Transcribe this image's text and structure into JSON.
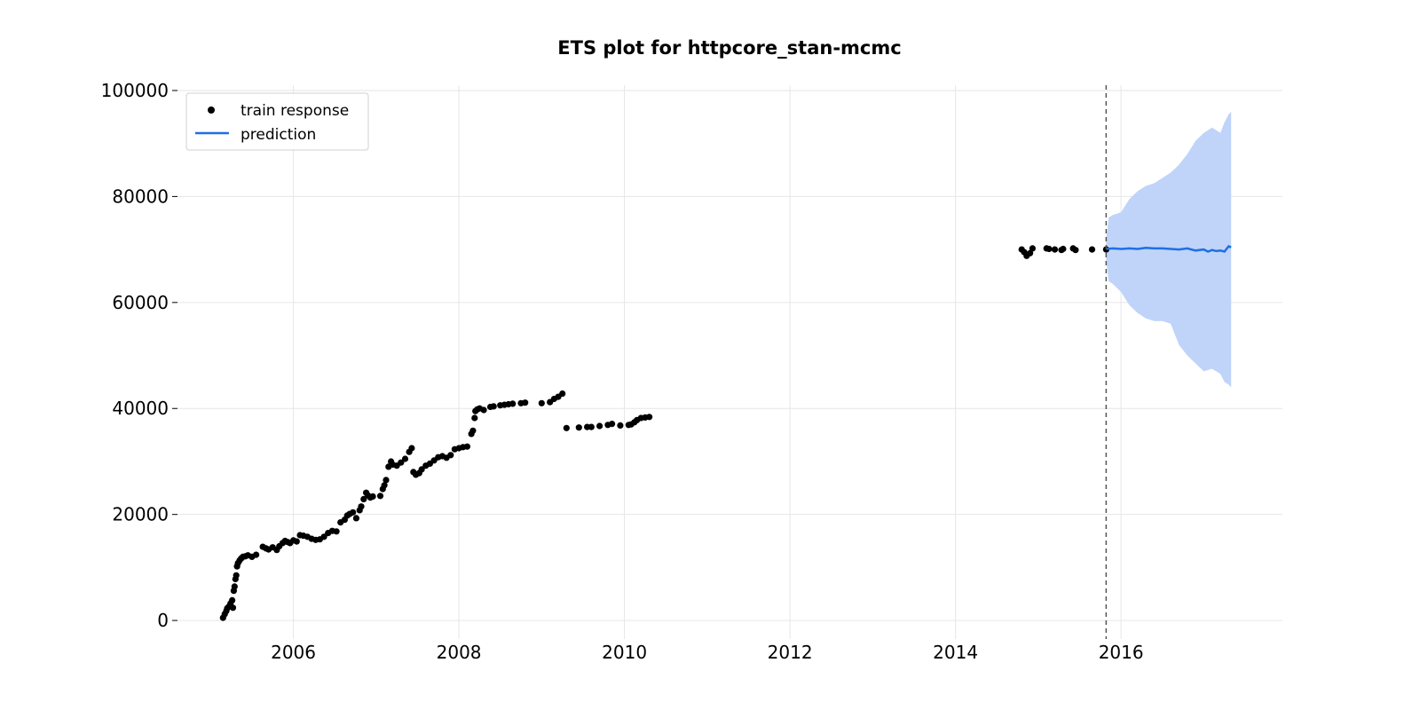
{
  "chart_data": {
    "type": "line",
    "title": "ETS plot for httpcore_stan-mcmc",
    "xlabel": "",
    "ylabel": "",
    "xlim": [
      2004.6,
      2017.95
    ],
    "ylim": [
      -3500,
      101000
    ],
    "x_ticks": [
      2006,
      2008,
      2010,
      2012,
      2014,
      2016
    ],
    "x_tick_labels": [
      "2006",
      "2008",
      "2010",
      "2012",
      "2014",
      "2016"
    ],
    "y_ticks": [
      0,
      20000,
      40000,
      60000,
      80000,
      100000
    ],
    "y_tick_labels": [
      "0",
      "20000",
      "40000",
      "60000",
      "80000",
      "100000"
    ],
    "grid": true,
    "legend": {
      "position": "top-left",
      "entries": [
        {
          "label": "train response",
          "marker": "dot",
          "color": "#000000"
        },
        {
          "label": "prediction",
          "marker": "line",
          "color": "#1f6fe5"
        }
      ]
    },
    "forecast_start_x": 2015.82,
    "colors": {
      "train": "#000000",
      "prediction": "#1f6fe5",
      "interval": "#bfd4f8",
      "vline": "#555555"
    },
    "series": [
      {
        "name": "train response",
        "style": "scatter",
        "x": [
          2005.15,
          2005.17,
          2005.19,
          2005.2,
          2005.22,
          2005.24,
          2005.26,
          2005.27,
          2005.28,
          2005.29,
          2005.3,
          2005.31,
          2005.32,
          2005.33,
          2005.35,
          2005.37,
          2005.39,
          2005.42,
          2005.45,
          2005.5,
          2005.55,
          2005.63,
          2005.67,
          2005.7,
          2005.75,
          2005.8,
          2005.83,
          2005.87,
          2005.9,
          2005.93,
          2005.96,
          2006.0,
          2006.04,
          2006.08,
          2006.12,
          2006.17,
          2006.22,
          2006.27,
          2006.32,
          2006.37,
          2006.42,
          2006.47,
          2006.52,
          2006.57,
          2006.62,
          2006.65,
          2006.68,
          2006.72,
          2006.76,
          2006.8,
          2006.82,
          2006.85,
          2006.88,
          2006.9,
          2006.93,
          2006.96,
          2007.05,
          2007.08,
          2007.1,
          2007.12,
          2007.15,
          2007.18,
          2007.2,
          2007.25,
          2007.3,
          2007.35,
          2007.4,
          2007.43,
          2007.45,
          2007.48,
          2007.52,
          2007.55,
          2007.6,
          2007.65,
          2007.7,
          2007.75,
          2007.8,
          2007.85,
          2007.9,
          2007.95,
          2008.0,
          2008.05,
          2008.1,
          2008.15,
          2008.17,
          2008.19,
          2008.2,
          2008.22,
          2008.25,
          2008.3,
          2008.38,
          2008.42,
          2008.5,
          2008.55,
          2008.6,
          2008.65,
          2008.75,
          2008.8,
          2009.0,
          2009.1,
          2009.15,
          2009.2,
          2009.25,
          2009.3,
          2009.45,
          2009.55,
          2009.6,
          2009.7,
          2009.8,
          2009.85,
          2009.95,
          2010.05,
          2010.08,
          2010.12,
          2010.15,
          2010.2,
          2010.25,
          2010.3,
          2014.8,
          2014.83,
          2014.86,
          2014.9,
          2014.93,
          2015.1,
          2015.13,
          2015.2,
          2015.28,
          2015.3,
          2015.42,
          2015.45,
          2015.65,
          2015.82
        ],
        "y": [
          500,
          1200,
          1800,
          2300,
          2600,
          3200,
          3800,
          2400,
          5600,
          6400,
          7800,
          8500,
          10200,
          10800,
          11300,
          11700,
          12000,
          12100,
          12300,
          12000,
          12400,
          13900,
          13600,
          13400,
          13800,
          13300,
          14000,
          14600,
          15000,
          14800,
          14600,
          15100,
          14900,
          16100,
          16000,
          15800,
          15400,
          15200,
          15300,
          15800,
          16500,
          16900,
          16800,
          18500,
          19000,
          19800,
          20100,
          20400,
          19300,
          20800,
          21500,
          22900,
          24100,
          23600,
          23200,
          23400,
          23500,
          24800,
          25500,
          26500,
          29000,
          30000,
          29400,
          29200,
          29800,
          30500,
          31800,
          32500,
          28000,
          27500,
          27800,
          28500,
          29200,
          29600,
          30200,
          30800,
          31000,
          30700,
          31200,
          32300,
          32500,
          32700,
          32800,
          35200,
          35800,
          38200,
          39500,
          39800,
          40000,
          39700,
          40300,
          40400,
          40600,
          40700,
          40800,
          40900,
          41000,
          41100,
          41000,
          41200,
          41800,
          42200,
          42800,
          36300,
          36400,
          36500,
          36500,
          36700,
          36900,
          37100,
          36800,
          36900,
          37000,
          37400,
          37800,
          38200,
          38300,
          38400,
          70000,
          69500,
          68800,
          69300,
          70200,
          70200,
          70100,
          70000,
          69900,
          70100,
          70200,
          69900,
          70000,
          70000
        ]
      },
      {
        "name": "prediction",
        "style": "line",
        "x": [
          2015.82,
          2015.9,
          2016.0,
          2016.1,
          2016.2,
          2016.3,
          2016.4,
          2016.5,
          2016.6,
          2016.7,
          2016.8,
          2016.9,
          2017.0,
          2017.05,
          2017.1,
          2017.15,
          2017.2,
          2017.25,
          2017.3,
          2017.33
        ],
        "y": [
          70100,
          70200,
          70100,
          70200,
          70100,
          70300,
          70200,
          70200,
          70100,
          70000,
          70200,
          69800,
          70000,
          69600,
          69900,
          69700,
          69800,
          69600,
          70600,
          70400
        ]
      }
    ],
    "interval": {
      "name": "prediction interval",
      "x": [
        2015.82,
        2015.85,
        2015.9,
        2016.0,
        2016.1,
        2016.2,
        2016.3,
        2016.4,
        2016.5,
        2016.6,
        2016.7,
        2016.8,
        2016.9,
        2017.0,
        2017.1,
        2017.2,
        2017.25,
        2017.3,
        2017.33
      ],
      "upper": [
        72000,
        76000,
        76500,
        77000,
        79500,
        81000,
        82000,
        82500,
        83500,
        84500,
        86000,
        88000,
        90500,
        92000,
        93000,
        92000,
        94000,
        95500,
        96000
      ],
      "lower": [
        68000,
        64000,
        63500,
        62000,
        59500,
        58000,
        57000,
        56500,
        56500,
        56000,
        52000,
        50000,
        48500,
        47000,
        47500,
        46500,
        45000,
        44500,
        44000
      ]
    }
  }
}
